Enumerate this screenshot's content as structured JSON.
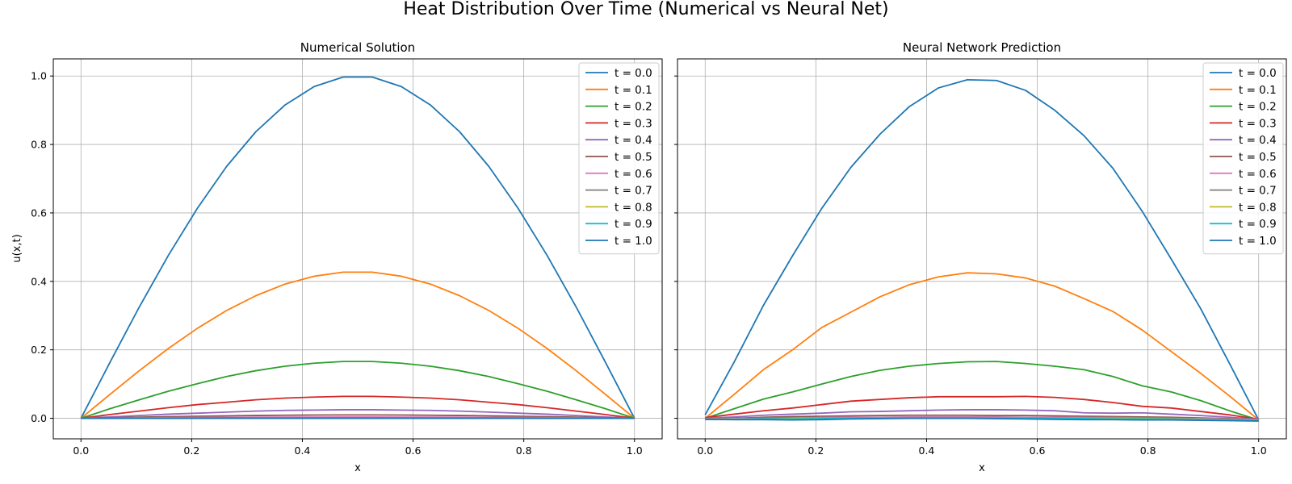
{
  "figure": {
    "title": "Heat Distribution Over Time (Numerical vs Neural Net)"
  },
  "colors": [
    "#1f77b4",
    "#ff7f0e",
    "#2ca02c",
    "#d62728",
    "#9467bd",
    "#8c564b",
    "#e377c2",
    "#7f7f7f",
    "#bcbd22",
    "#17becf",
    "#1f77b4"
  ],
  "chart_data": [
    {
      "type": "line",
      "title": "Numerical Solution",
      "xlabel": "x",
      "ylabel": "u(x,t)",
      "xlim": [
        -0.05,
        1.05
      ],
      "ylim": [
        -0.06,
        1.05
      ],
      "xticks": [
        "0.0",
        "0.2",
        "0.4",
        "0.6",
        "0.8",
        "1.0"
      ],
      "yticks": [
        "0.0",
        "0.2",
        "0.4",
        "0.6",
        "0.8",
        "1.0"
      ],
      "grid": true,
      "legend": "top-right",
      "x": [
        0.0,
        0.0526,
        0.1053,
        0.1579,
        0.2105,
        0.2632,
        0.3158,
        0.3684,
        0.4211,
        0.4737,
        0.5263,
        0.5789,
        0.6316,
        0.6842,
        0.7368,
        0.7895,
        0.8421,
        0.8947,
        0.9474,
        1.0
      ],
      "series": [
        {
          "name": "t = 0.0",
          "values": [
            0.0,
            0.164,
            0.325,
            0.476,
            0.614,
            0.736,
            0.837,
            0.915,
            0.969,
            0.997,
            0.997,
            0.969,
            0.915,
            0.837,
            0.736,
            0.614,
            0.476,
            0.325,
            0.164,
            0.0
          ]
        },
        {
          "name": "t = 0.1",
          "values": [
            0.0,
            0.07,
            0.139,
            0.204,
            0.263,
            0.315,
            0.358,
            0.392,
            0.415,
            0.427,
            0.427,
            0.415,
            0.392,
            0.358,
            0.315,
            0.263,
            0.204,
            0.139,
            0.07,
            0.0
          ]
        },
        {
          "name": "t = 0.2",
          "values": [
            0.0,
            0.028,
            0.054,
            0.079,
            0.101,
            0.122,
            0.139,
            0.152,
            0.161,
            0.166,
            0.166,
            0.161,
            0.152,
            0.139,
            0.122,
            0.101,
            0.079,
            0.054,
            0.028,
            0.0
          ]
        },
        {
          "name": "t = 0.3",
          "values": [
            0.0,
            0.011,
            0.021,
            0.031,
            0.04,
            0.047,
            0.054,
            0.059,
            0.062,
            0.064,
            0.064,
            0.062,
            0.059,
            0.054,
            0.047,
            0.04,
            0.031,
            0.021,
            0.011,
            0.0
          ]
        },
        {
          "name": "t = 0.4",
          "values": [
            0.0,
            0.004,
            0.008,
            0.012,
            0.015,
            0.018,
            0.021,
            0.023,
            0.024,
            0.025,
            0.025,
            0.024,
            0.023,
            0.021,
            0.018,
            0.015,
            0.012,
            0.008,
            0.004,
            0.0
          ]
        },
        {
          "name": "t = 0.5",
          "values": [
            0.0,
            0.0016,
            0.0032,
            0.0047,
            0.006,
            0.0072,
            0.0082,
            0.009,
            0.0095,
            0.0098,
            0.0098,
            0.0095,
            0.009,
            0.0082,
            0.0072,
            0.006,
            0.0047,
            0.0032,
            0.0016,
            0.0
          ]
        },
        {
          "name": "t = 0.6",
          "values": [
            0.0,
            0.0006,
            0.0012,
            0.0018,
            0.0024,
            0.0028,
            0.0032,
            0.0035,
            0.0037,
            0.0038,
            0.0038,
            0.0037,
            0.0035,
            0.0032,
            0.0028,
            0.0024,
            0.0018,
            0.0012,
            0.0006,
            0.0
          ]
        },
        {
          "name": "t = 0.7",
          "values": [
            0.0,
            0.0002,
            0.0005,
            0.0007,
            0.0009,
            0.0011,
            0.0012,
            0.0013,
            0.0014,
            0.0015,
            0.0015,
            0.0014,
            0.0013,
            0.0012,
            0.0011,
            0.0009,
            0.0007,
            0.0005,
            0.0002,
            0.0
          ]
        },
        {
          "name": "t = 0.8",
          "values": [
            0.0,
            0.0001,
            0.0002,
            0.0003,
            0.0004,
            0.0004,
            0.0005,
            0.0005,
            0.0005,
            0.0006,
            0.0006,
            0.0005,
            0.0005,
            0.0005,
            0.0004,
            0.0004,
            0.0003,
            0.0002,
            0.0001,
            0.0
          ]
        },
        {
          "name": "t = 0.9",
          "values": [
            0.0,
            0.0,
            0.0001,
            0.0001,
            0.0001,
            0.0002,
            0.0002,
            0.0002,
            0.0002,
            0.0002,
            0.0002,
            0.0002,
            0.0002,
            0.0002,
            0.0002,
            0.0001,
            0.0001,
            0.0001,
            0.0,
            0.0
          ]
        },
        {
          "name": "t = 1.0",
          "values": [
            0.0,
            0.0,
            0.0,
            0.0,
            0.0001,
            0.0001,
            0.0001,
            0.0001,
            0.0001,
            0.0001,
            0.0001,
            0.0001,
            0.0001,
            0.0001,
            0.0001,
            0.0001,
            0.0,
            0.0,
            0.0,
            0.0
          ]
        }
      ]
    },
    {
      "type": "line",
      "title": "Neural Network Prediction",
      "xlabel": "x",
      "ylabel": "",
      "xlim": [
        -0.05,
        1.05
      ],
      "ylim": [
        -0.06,
        1.05
      ],
      "xticks": [
        "0.0",
        "0.2",
        "0.4",
        "0.6",
        "0.8",
        "1.0"
      ],
      "yticks": [],
      "grid": true,
      "legend": "top-right",
      "x": [
        0.0,
        0.0526,
        0.1053,
        0.1579,
        0.2105,
        0.2632,
        0.3158,
        0.3684,
        0.4211,
        0.4737,
        0.5263,
        0.5789,
        0.6316,
        0.6842,
        0.7368,
        0.7895,
        0.8421,
        0.8947,
        0.9474,
        1.0
      ],
      "series": [
        {
          "name": "t = 0.0",
          "values": [
            0.01,
            0.165,
            0.33,
            0.475,
            0.613,
            0.733,
            0.83,
            0.91,
            0.965,
            0.989,
            0.987,
            0.958,
            0.9,
            0.826,
            0.73,
            0.605,
            0.465,
            0.322,
            0.16,
            -0.005
          ]
        },
        {
          "name": "t = 0.1",
          "values": [
            0.0,
            0.07,
            0.142,
            0.2,
            0.265,
            0.31,
            0.355,
            0.39,
            0.413,
            0.425,
            0.422,
            0.41,
            0.386,
            0.35,
            0.312,
            0.258,
            0.195,
            0.132,
            0.065,
            -0.005
          ]
        },
        {
          "name": "t = 0.2",
          "values": [
            0.0,
            0.028,
            0.056,
            0.077,
            0.1,
            0.122,
            0.14,
            0.152,
            0.16,
            0.165,
            0.166,
            0.16,
            0.152,
            0.142,
            0.122,
            0.095,
            0.077,
            0.052,
            0.022,
            -0.005
          ]
        },
        {
          "name": "t = 0.3",
          "values": [
            0.002,
            0.012,
            0.022,
            0.03,
            0.04,
            0.05,
            0.055,
            0.06,
            0.063,
            0.063,
            0.063,
            0.064,
            0.061,
            0.055,
            0.046,
            0.035,
            0.03,
            0.02,
            0.01,
            -0.003
          ]
        },
        {
          "name": "t = 0.4",
          "values": [
            0.0,
            0.004,
            0.009,
            0.012,
            0.015,
            0.019,
            0.02,
            0.022,
            0.024,
            0.025,
            0.025,
            0.024,
            0.022,
            0.016,
            0.015,
            0.016,
            0.012,
            0.008,
            0.003,
            -0.003
          ]
        },
        {
          "name": "t = 0.5",
          "values": [
            -0.002,
            0.0,
            0.003,
            0.005,
            0.006,
            0.007,
            0.008,
            0.009,
            0.009,
            0.009,
            0.008,
            0.008,
            0.007,
            0.006,
            0.005,
            0.004,
            0.003,
            0.001,
            -0.001,
            -0.004
          ]
        },
        {
          "name": "t = 0.6",
          "values": [
            -0.002,
            -0.001,
            0.0,
            0.001,
            0.002,
            0.003,
            0.003,
            0.004,
            0.004,
            0.004,
            0.004,
            0.003,
            0.003,
            0.002,
            0.002,
            0.001,
            0.0,
            -0.001,
            -0.002,
            -0.004
          ]
        },
        {
          "name": "t = 0.7",
          "values": [
            -0.002,
            -0.002,
            -0.001,
            0.0,
            0.001,
            0.001,
            0.002,
            0.002,
            0.002,
            0.002,
            0.002,
            0.002,
            0.001,
            0.001,
            0.0,
            0.0,
            -0.001,
            -0.002,
            -0.003,
            -0.005
          ]
        },
        {
          "name": "t = 0.8",
          "values": [
            -0.003,
            -0.002,
            -0.002,
            -0.001,
            0.0,
            0.0,
            0.001,
            0.001,
            0.001,
            0.001,
            0.001,
            0.001,
            0.0,
            0.0,
            -0.001,
            -0.001,
            -0.002,
            -0.003,
            -0.004,
            -0.006
          ]
        },
        {
          "name": "t = 0.9",
          "values": [
            -0.003,
            -0.003,
            -0.002,
            -0.002,
            -0.001,
            -0.001,
            0.0,
            0.0,
            0.0,
            0.0,
            0.0,
            0.0,
            -0.001,
            -0.001,
            -0.002,
            -0.002,
            -0.003,
            -0.004,
            -0.005,
            -0.007
          ]
        },
        {
          "name": "t = 1.0",
          "values": [
            -0.003,
            -0.004,
            -0.004,
            -0.005,
            -0.004,
            -0.002,
            -0.001,
            0.0,
            0.0,
            0.0,
            -0.001,
            -0.002,
            -0.003,
            -0.004,
            -0.004,
            -0.005,
            -0.005,
            -0.006,
            -0.007,
            -0.008
          ]
        }
      ]
    }
  ]
}
